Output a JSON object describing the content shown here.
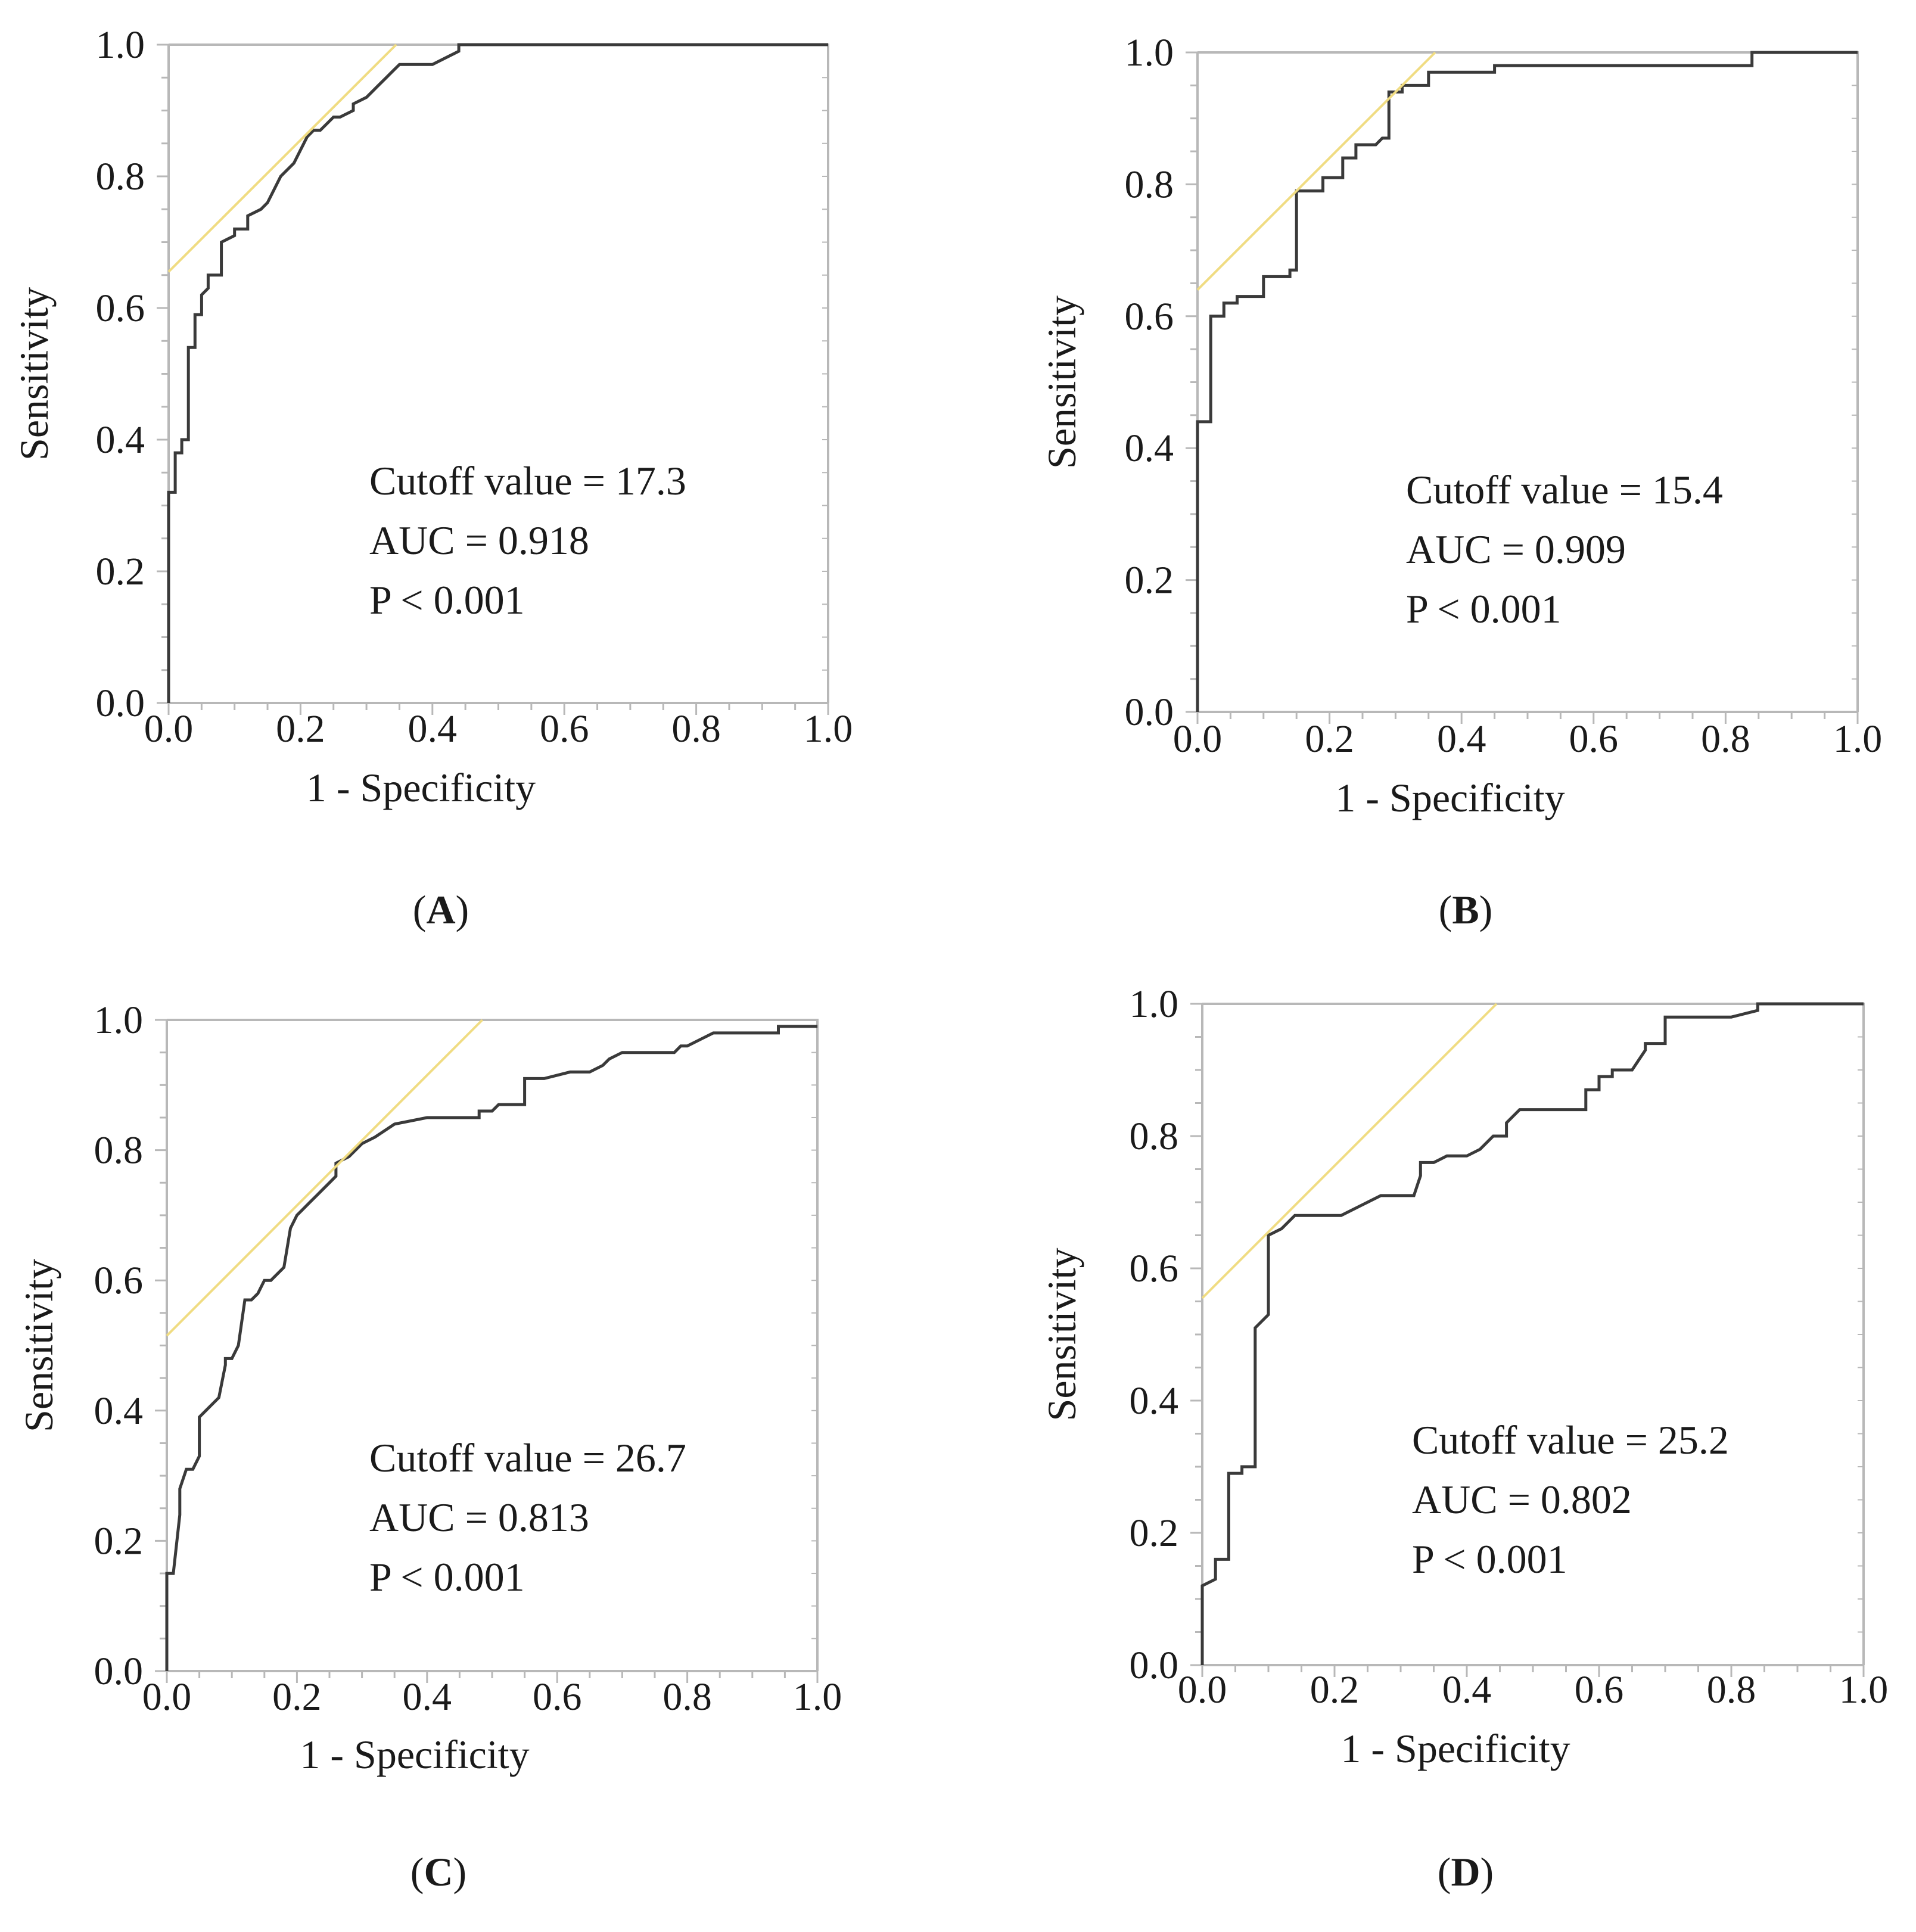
{
  "colors": {
    "roc_line": "#3a3a3a",
    "tangent_line": "#f0dc82",
    "frame": "#b8b8b8",
    "axis": "#3a3a3a"
  },
  "chart_data": [
    {
      "type": "line",
      "panel_label": "A",
      "xlabel": "1 - Specificity",
      "ylabel": "Sensitivity",
      "xlim": [
        0,
        1
      ],
      "ylim": [
        0,
        1
      ],
      "xticks": [
        "0.0",
        "0.2",
        "0.4",
        "0.6",
        "0.8",
        "1.0"
      ],
      "yticks": [
        "0.0",
        "0.2",
        "0.4",
        "0.6",
        "0.8",
        "1.0"
      ],
      "annotations": [
        "Cutoff  value = 17.3",
        "AUC = 0.918",
        "P < 0.001"
      ],
      "series": [
        {
          "role": "roc",
          "x": [
            0,
            0,
            0,
            0.01,
            0.01,
            0.02,
            0.02,
            0.03,
            0.03,
            0.04,
            0.04,
            0.05,
            0.05,
            0.06,
            0.06,
            0.08,
            0.08,
            0.1,
            0.1,
            0.12,
            0.12,
            0.14,
            0.15,
            0.16,
            0.17,
            0.18,
            0.19,
            0.2,
            0.21,
            0.22,
            0.23,
            0.24,
            0.25,
            0.26,
            0.28,
            0.28,
            0.3,
            0.31,
            0.32,
            0.33,
            0.34,
            0.35,
            0.36,
            0.4,
            0.42,
            0.44,
            0.44,
            0.5,
            1
          ],
          "y": [
            0,
            0.2,
            0.32,
            0.32,
            0.38,
            0.38,
            0.4,
            0.4,
            0.54,
            0.54,
            0.59,
            0.59,
            0.62,
            0.63,
            0.65,
            0.65,
            0.7,
            0.71,
            0.72,
            0.72,
            0.74,
            0.75,
            0.76,
            0.78,
            0.8,
            0.81,
            0.82,
            0.84,
            0.86,
            0.87,
            0.87,
            0.88,
            0.89,
            0.89,
            0.9,
            0.91,
            0.92,
            0.93,
            0.94,
            0.95,
            0.96,
            0.97,
            0.97,
            0.97,
            0.98,
            0.99,
            1,
            1,
            1
          ]
        },
        {
          "role": "tangent",
          "x": [
            0,
            0.345
          ],
          "y": [
            0.655,
            1
          ]
        }
      ]
    },
    {
      "type": "line",
      "panel_label": "B",
      "xlabel": "1 - Specificity",
      "ylabel": "Sensitivity",
      "xlim": [
        0,
        1
      ],
      "ylim": [
        0,
        1
      ],
      "xticks": [
        "0.0",
        "0.2",
        "0.4",
        "0.6",
        "0.8",
        "1.0"
      ],
      "yticks": [
        "0.0",
        "0.2",
        "0.4",
        "0.6",
        "0.8",
        "1.0"
      ],
      "annotations": [
        "Cutoff  value = 15.4",
        "AUC = 0.909",
        "P < 0.001"
      ],
      "series": [
        {
          "role": "roc",
          "x": [
            0,
            0,
            0.02,
            0.02,
            0.04,
            0.04,
            0.06,
            0.06,
            0.1,
            0.1,
            0.14,
            0.14,
            0.15,
            0.15,
            0.19,
            0.19,
            0.22,
            0.22,
            0.24,
            0.24,
            0.27,
            0.28,
            0.29,
            0.29,
            0.31,
            0.31,
            0.35,
            0.35,
            0.45,
            0.45,
            0.84,
            0.84,
            1
          ],
          "y": [
            0,
            0.44,
            0.44,
            0.6,
            0.6,
            0.62,
            0.62,
            0.63,
            0.63,
            0.66,
            0.66,
            0.67,
            0.67,
            0.79,
            0.79,
            0.81,
            0.81,
            0.84,
            0.84,
            0.86,
            0.86,
            0.87,
            0.87,
            0.94,
            0.94,
            0.95,
            0.95,
            0.97,
            0.97,
            0.98,
            0.98,
            1,
            1
          ]
        },
        {
          "role": "tangent",
          "x": [
            0,
            0.36
          ],
          "y": [
            0.64,
            1
          ]
        }
      ]
    },
    {
      "type": "line",
      "panel_label": "C",
      "xlabel": "1 - Specificity",
      "ylabel": "Sensitivity",
      "xlim": [
        0,
        1
      ],
      "ylim": [
        0,
        1
      ],
      "xticks": [
        "0.0",
        "0.2",
        "0.4",
        "0.6",
        "0.8",
        "1.0"
      ],
      "yticks": [
        "0.0",
        "0.2",
        "0.4",
        "0.6",
        "0.8",
        "1.0"
      ],
      "annotations": [
        "Cutoff  value = 26.7",
        "AUC = 0.813",
        "P < 0.001"
      ],
      "series": [
        {
          "role": "roc",
          "x": [
            0,
            0,
            0.01,
            0.02,
            0.02,
            0.03,
            0.04,
            0.05,
            0.05,
            0.06,
            0.07,
            0.08,
            0.09,
            0.09,
            0.1,
            0.11,
            0.12,
            0.13,
            0.14,
            0.15,
            0.16,
            0.18,
            0.19,
            0.2,
            0.21,
            0.22,
            0.23,
            0.24,
            0.25,
            0.26,
            0.26,
            0.28,
            0.3,
            0.32,
            0.35,
            0.4,
            0.45,
            0.48,
            0.48,
            0.5,
            0.51,
            0.52,
            0.55,
            0.55,
            0.58,
            0.62,
            0.65,
            0.67,
            0.68,
            0.7,
            0.78,
            0.79,
            0.8,
            0.82,
            0.84,
            0.86,
            0.94,
            0.94,
            0.99,
            1
          ],
          "y": [
            0,
            0.15,
            0.15,
            0.24,
            0.28,
            0.31,
            0.31,
            0.33,
            0.39,
            0.4,
            0.41,
            0.42,
            0.47,
            0.48,
            0.48,
            0.5,
            0.57,
            0.57,
            0.58,
            0.6,
            0.6,
            0.62,
            0.68,
            0.7,
            0.71,
            0.72,
            0.73,
            0.74,
            0.75,
            0.76,
            0.78,
            0.79,
            0.81,
            0.82,
            0.84,
            0.85,
            0.85,
            0.85,
            0.86,
            0.86,
            0.87,
            0.87,
            0.87,
            0.91,
            0.91,
            0.92,
            0.92,
            0.93,
            0.94,
            0.95,
            0.95,
            0.96,
            0.96,
            0.97,
            0.98,
            0.98,
            0.98,
            0.99,
            0.99,
            0.99
          ]
        },
        {
          "role": "tangent",
          "x": [
            0,
            0.485
          ],
          "y": [
            0.515,
            1
          ]
        }
      ]
    },
    {
      "type": "line",
      "panel_label": "D",
      "xlabel": "1 - Specificity",
      "ylabel": "Sensitivity",
      "xlim": [
        0,
        1
      ],
      "ylim": [
        0,
        1
      ],
      "xticks": [
        "0.0",
        "0.2",
        "0.4",
        "0.6",
        "0.8",
        "1.0"
      ],
      "yticks": [
        "0.0",
        "0.2",
        "0.4",
        "0.6",
        "0.8",
        "1.0"
      ],
      "annotations": [
        "Cutoff  value = 25.2",
        "AUC = 0.802",
        "P < 0.001"
      ],
      "series": [
        {
          "role": "roc",
          "x": [
            0,
            0,
            0.02,
            0.02,
            0.04,
            0.04,
            0.06,
            0.06,
            0.08,
            0.08,
            0.1,
            0.1,
            0.12,
            0.14,
            0.21,
            0.25,
            0.27,
            0.32,
            0.33,
            0.33,
            0.35,
            0.37,
            0.4,
            0.42,
            0.44,
            0.46,
            0.46,
            0.48,
            0.58,
            0.58,
            0.6,
            0.6,
            0.62,
            0.62,
            0.65,
            0.67,
            0.67,
            0.7,
            0.7,
            0.8,
            0.84,
            0.84,
            1
          ],
          "y": [
            0,
            0.12,
            0.13,
            0.16,
            0.16,
            0.29,
            0.29,
            0.3,
            0.3,
            0.51,
            0.53,
            0.65,
            0.66,
            0.68,
            0.68,
            0.7,
            0.71,
            0.71,
            0.74,
            0.76,
            0.76,
            0.77,
            0.77,
            0.78,
            0.8,
            0.8,
            0.82,
            0.84,
            0.84,
            0.87,
            0.87,
            0.89,
            0.89,
            0.9,
            0.9,
            0.93,
            0.94,
            0.94,
            0.98,
            0.98,
            0.99,
            1,
            1
          ]
        },
        {
          "role": "tangent",
          "x": [
            0,
            0.445
          ],
          "y": [
            0.555,
            1
          ]
        }
      ]
    }
  ]
}
